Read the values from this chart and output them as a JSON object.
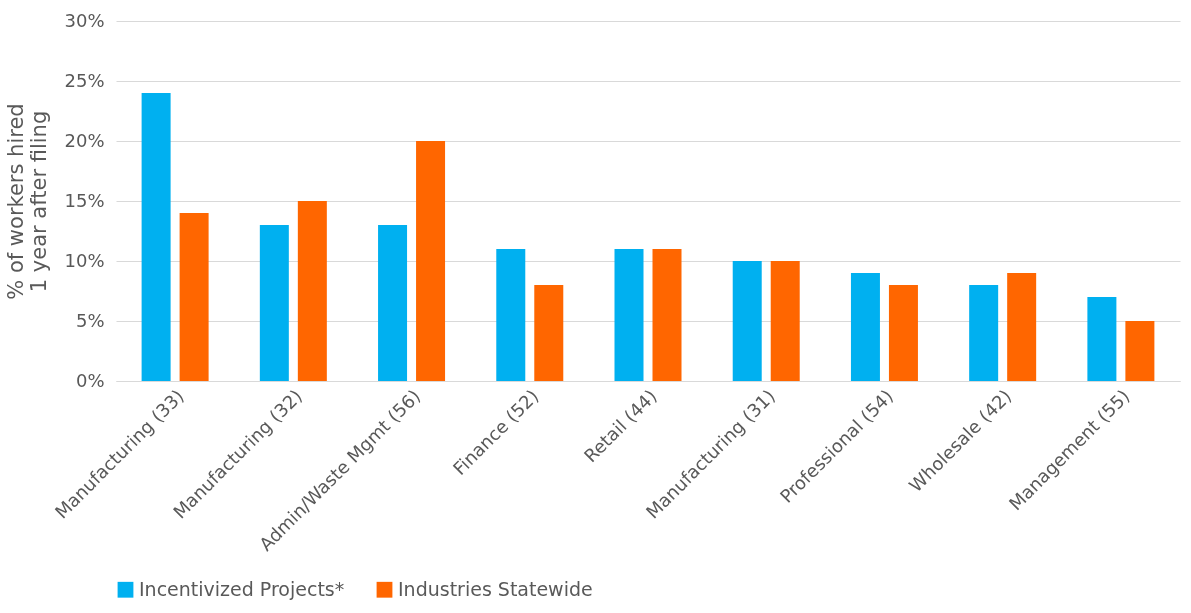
{
  "chart_data": {
    "type": "bar",
    "ylabel": "% of workers hired\n1 year after filing",
    "categories": [
      "Manufacturing (33)",
      "Manufacturing (32)",
      "Admin/Waste Mgmt (56)",
      "Finance (52)",
      "Retail (44)",
      "Manufacturing (31)",
      "Professional (54)",
      "Wholesale (42)",
      "Management (55)"
    ],
    "series": [
      {
        "name": "Incentivized Projects*",
        "color": "#00b0f0",
        "values": [
          24,
          13,
          13,
          11,
          11,
          10,
          9,
          8,
          7
        ]
      },
      {
        "name": "Industries Statewide",
        "color": "#ff6600",
        "values": [
          14,
          15,
          20,
          8,
          11,
          10,
          8,
          9,
          5
        ]
      }
    ],
    "ylim": [
      0,
      30
    ],
    "yticks": [
      {
        "value": 0,
        "label": "0%"
      },
      {
        "value": 5,
        "label": "5%"
      },
      {
        "value": 10,
        "label": "10%"
      },
      {
        "value": 15,
        "label": "15%"
      },
      {
        "value": 20,
        "label": "20%"
      },
      {
        "value": 25,
        "label": "25%"
      },
      {
        "value": 30,
        "label": "30%"
      }
    ],
    "grid": "y",
    "legend": "bottom"
  }
}
